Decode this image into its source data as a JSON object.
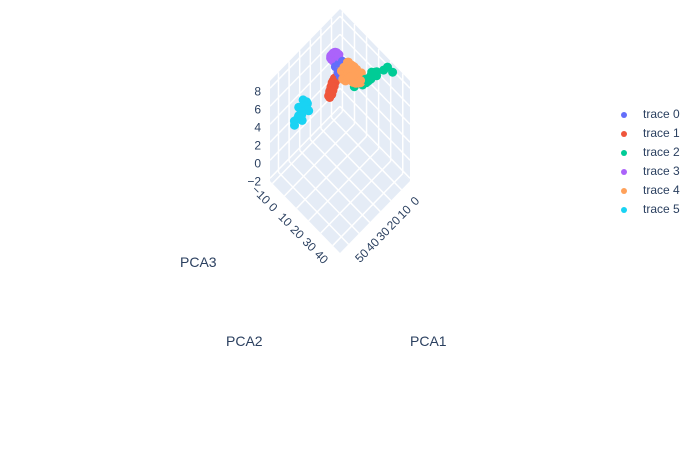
{
  "chart_data": {
    "type": "scatter",
    "dimensions": 3,
    "axes": {
      "x": {
        "label": "PCA1",
        "range": [
          -8,
          58
        ],
        "ticks": [
          0,
          10,
          20,
          30,
          40,
          50
        ],
        "tick_labels": [
          "0",
          "10",
          "20",
          "30",
          "40",
          "50"
        ]
      },
      "y": {
        "label": "PCA2",
        "range": [
          -12,
          46
        ],
        "ticks": [
          -10,
          0,
          10,
          20,
          30,
          40
        ],
        "tick_labels": [
          "−10",
          "0",
          "10",
          "20",
          "30",
          "40"
        ]
      },
      "z": {
        "label": "PCA3",
        "range": [
          -2.3,
          8.8
        ],
        "ticks": [
          -2,
          0,
          2,
          4,
          6,
          8
        ],
        "tick_labels": [
          "−2",
          "0",
          "2",
          "4",
          "6",
          "8"
        ]
      }
    },
    "grid": true,
    "legend": "right",
    "series": [
      {
        "name": "trace 0",
        "color": "#636efa",
        "points": [
          [
            -1,
            -3,
            4.7
          ],
          [
            0,
            0,
            4.0
          ],
          [
            1,
            -4,
            4.2
          ],
          [
            2,
            -2,
            5.0
          ],
          [
            -2,
            -5,
            3.8
          ],
          [
            0,
            -6,
            4.5
          ],
          [
            -1,
            -1,
            3.6
          ],
          [
            1,
            -3,
            4.8
          ],
          [
            3,
            -4,
            4.2
          ],
          [
            0,
            -2,
            3.9
          ],
          [
            2,
            -7,
            4.3
          ],
          [
            -2,
            -3,
            4.6
          ],
          [
            1,
            -5,
            3.7
          ],
          [
            -1,
            -4,
            4.4
          ],
          [
            0,
            -3,
            5.2
          ],
          [
            2,
            -3,
            3.8
          ],
          [
            1,
            -1,
            4.6
          ],
          [
            -3,
            -4,
            4.1
          ]
        ]
      },
      {
        "name": "trace 1",
        "color": "#EF553B",
        "points": [
          [
            3,
            -10,
            1.0
          ],
          [
            3,
            -9,
            1.6
          ],
          [
            3,
            -8,
            2.2
          ],
          [
            3,
            -7,
            2.8
          ],
          [
            3,
            -6,
            3.2
          ],
          [
            4,
            -10,
            1.3
          ],
          [
            4,
            -9,
            1.9
          ],
          [
            4,
            -8,
            2.5
          ],
          [
            4,
            -7,
            3.0
          ],
          [
            2,
            -10,
            0.8
          ],
          [
            2,
            -9,
            1.4
          ],
          [
            2,
            -8,
            2.0
          ],
          [
            5,
            -10,
            1.0
          ],
          [
            5,
            -9,
            1.7
          ],
          [
            5,
            -8,
            2.3
          ],
          [
            4,
            -6,
            3.4
          ],
          [
            3,
            -5,
            3.6
          ],
          [
            2,
            -7,
            2.6
          ],
          [
            5,
            -7,
            2.9
          ],
          [
            4,
            -10,
            0.7
          ]
        ]
      },
      {
        "name": "trace 2",
        "color": "#00cc96",
        "points": [
          [
            -5,
            30,
            8.5
          ],
          [
            -3,
            36,
            9.0
          ],
          [
            -4,
            22,
            7.0
          ],
          [
            -6,
            16,
            5.9
          ],
          [
            -6,
            15,
            5.3
          ],
          [
            -2,
            14,
            5.3
          ],
          [
            -3,
            14,
            4.8
          ],
          [
            -5,
            21,
            6.3
          ],
          [
            -4,
            15,
            5.0
          ],
          [
            -3,
            12,
            4.7
          ],
          [
            -2,
            10,
            4.4
          ],
          [
            -1,
            6,
            3.5
          ],
          [
            -4,
            8,
            4.0
          ],
          [
            -3,
            22,
            7.1
          ],
          [
            -5,
            20,
            6.5
          ],
          [
            -2,
            12,
            4.4
          ],
          [
            -4,
            17,
            5.5
          ],
          [
            -6,
            26,
            7.5
          ],
          [
            -3,
            18,
            5.8
          ],
          [
            -5,
            11,
            4.6
          ]
        ]
      },
      {
        "name": "trace 3",
        "color": "#ab63fa",
        "points": [
          [
            1,
            -10,
            4.5
          ],
          [
            1,
            -9,
            4.8
          ],
          [
            1,
            -8,
            5.1
          ],
          [
            1,
            -7,
            5.4
          ],
          [
            1,
            -6,
            5.6
          ],
          [
            2,
            -10,
            5.0
          ],
          [
            2,
            -9,
            5.3
          ],
          [
            2,
            -8,
            5.6
          ],
          [
            2,
            -7,
            5.9
          ],
          [
            0,
            -10,
            4.2
          ],
          [
            0,
            -9,
            4.5
          ],
          [
            0,
            -8,
            4.8
          ],
          [
            0,
            -7,
            5.1
          ],
          [
            3,
            -10,
            5.2
          ],
          [
            3,
            -9,
            5.5
          ],
          [
            3,
            -8,
            5.8
          ],
          [
            1,
            -5,
            5.8
          ],
          [
            2,
            -6,
            6.0
          ],
          [
            0,
            -6,
            5.3
          ],
          [
            3,
            -7,
            6.0
          ],
          [
            2,
            -11,
            4.7
          ],
          [
            1,
            -11,
            4.4
          ]
        ]
      },
      {
        "name": "trace 4",
        "color": "#FFA15A",
        "points": [
          [
            0,
            0,
            4.5
          ],
          [
            -1,
            2,
            4.8
          ],
          [
            1,
            3,
            5.0
          ],
          [
            0,
            5,
            5.2
          ],
          [
            -2,
            4,
            4.4
          ],
          [
            2,
            1,
            4.6
          ],
          [
            1,
            -1,
            4.2
          ],
          [
            -1,
            6,
            5.0
          ],
          [
            0,
            8,
            5.4
          ],
          [
            2,
            5,
            4.8
          ],
          [
            -2,
            0,
            4.1
          ],
          [
            1,
            7,
            5.5
          ],
          [
            3,
            2,
            4.4
          ],
          [
            0,
            2,
            5.8
          ],
          [
            -1,
            4,
            5.6
          ],
          [
            2,
            3,
            5.3
          ],
          [
            1,
            0,
            3.9
          ],
          [
            -2,
            7,
            5.1
          ],
          [
            0,
            10,
            5.5
          ],
          [
            3,
            0,
            4.0
          ],
          [
            1,
            5,
            4.3
          ],
          [
            -1,
            -1,
            4.6
          ],
          [
            2,
            8,
            5.0
          ],
          [
            0,
            3,
            4.0
          ],
          [
            -3,
            2,
            4.7
          ],
          [
            1,
            9,
            5.2
          ],
          [
            4,
            1,
            4.3
          ],
          [
            2,
            -2,
            4.5
          ],
          [
            -1,
            8,
            5.7
          ],
          [
            0,
            6,
            4.1
          ],
          [
            3,
            4,
            5.1
          ],
          [
            -2,
            5,
            5.4
          ],
          [
            1,
            2,
            5.9
          ],
          [
            2,
            6,
            5.6
          ],
          [
            -1,
            10,
            5.3
          ],
          [
            4,
            3,
            4.7
          ],
          [
            0,
            -2,
            4.4
          ],
          [
            3,
            6,
            5.0
          ],
          [
            -3,
            4,
            5.2
          ],
          [
            1,
            11,
            5.0
          ],
          [
            2,
            0,
            5.2
          ],
          [
            0,
            4,
            4.7
          ],
          [
            5,
            2,
            4.5
          ],
          [
            -2,
            9,
            5.0
          ],
          [
            3,
            8,
            5.4
          ],
          [
            1,
            -3,
            4.6
          ],
          [
            4,
            5,
            4.9
          ],
          [
            -1,
            12,
            5.4
          ],
          [
            2,
            10,
            4.8
          ],
          [
            0,
            1,
            4.3
          ],
          [
            3,
            -1,
            4.8
          ],
          [
            5,
            4,
            4.6
          ],
          [
            -3,
            6,
            4.9
          ],
          [
            1,
            4,
            4.5
          ],
          [
            2,
            12,
            5.1
          ],
          [
            0,
            12,
            4.9
          ],
          [
            4,
            7,
            5.3
          ],
          [
            -2,
            11,
            5.6
          ],
          [
            1,
            13,
            5.4
          ],
          [
            3,
            10,
            5.0
          ]
        ]
      },
      {
        "name": "trace 5",
        "color": "#19d3f3",
        "points": [
          [
            34,
            -4,
            3.8
          ],
          [
            36,
            -3,
            4.3
          ],
          [
            38,
            -4,
            3.3
          ],
          [
            40,
            -2,
            4.6
          ],
          [
            37,
            -1,
            4.9
          ],
          [
            35,
            -2,
            5.1
          ],
          [
            39,
            -5,
            3.6
          ],
          [
            42,
            -3,
            4.0
          ],
          [
            44,
            -4,
            3.3
          ],
          [
            36,
            -5,
            3.4
          ],
          [
            33,
            -3,
            4.5
          ],
          [
            41,
            -1,
            4.4
          ],
          [
            38,
            -2,
            5.0
          ],
          [
            35,
            -4,
            4.7
          ],
          [
            43,
            -5,
            3.5
          ],
          [
            37,
            -3,
            5.4
          ],
          [
            40,
            -4,
            4.8
          ],
          [
            34,
            -1,
            4.1
          ],
          [
            39,
            -2,
            3.5
          ],
          [
            36,
            0,
            4.6
          ]
        ]
      }
    ]
  }
}
